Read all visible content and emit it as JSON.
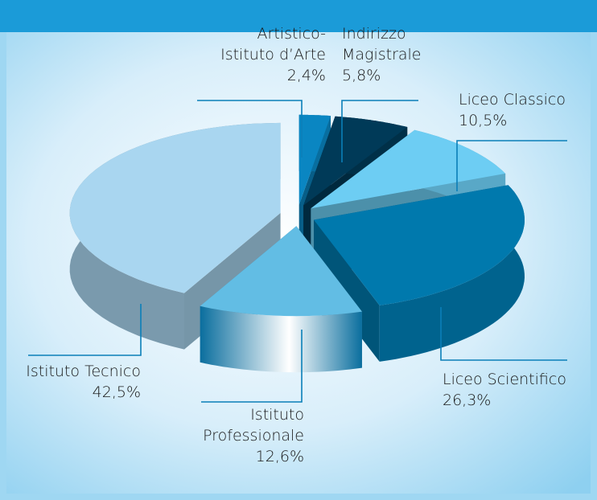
{
  "chart_data": {
    "type": "pie3d",
    "categories": [
      "Artistico-\nIstituto d’Arte",
      "Indirizzo\nMagistrale",
      "Liceo Classico",
      "Liceo Scientifico",
      "Istituto\nProfessionale",
      "Istituto Tecnico"
    ],
    "values": [
      2.4,
      5.8,
      10.5,
      26.3,
      12.6,
      42.5
    ],
    "value_labels": [
      "2,4%",
      "5,8%",
      "10,5%",
      "26,3%",
      "12,6%",
      "42,5%"
    ],
    "colors": [
      "#0a86c2",
      "#003a58",
      "#6dcdf3",
      "#0079ad",
      "#62bde4",
      "#a9d6f0"
    ]
  }
}
